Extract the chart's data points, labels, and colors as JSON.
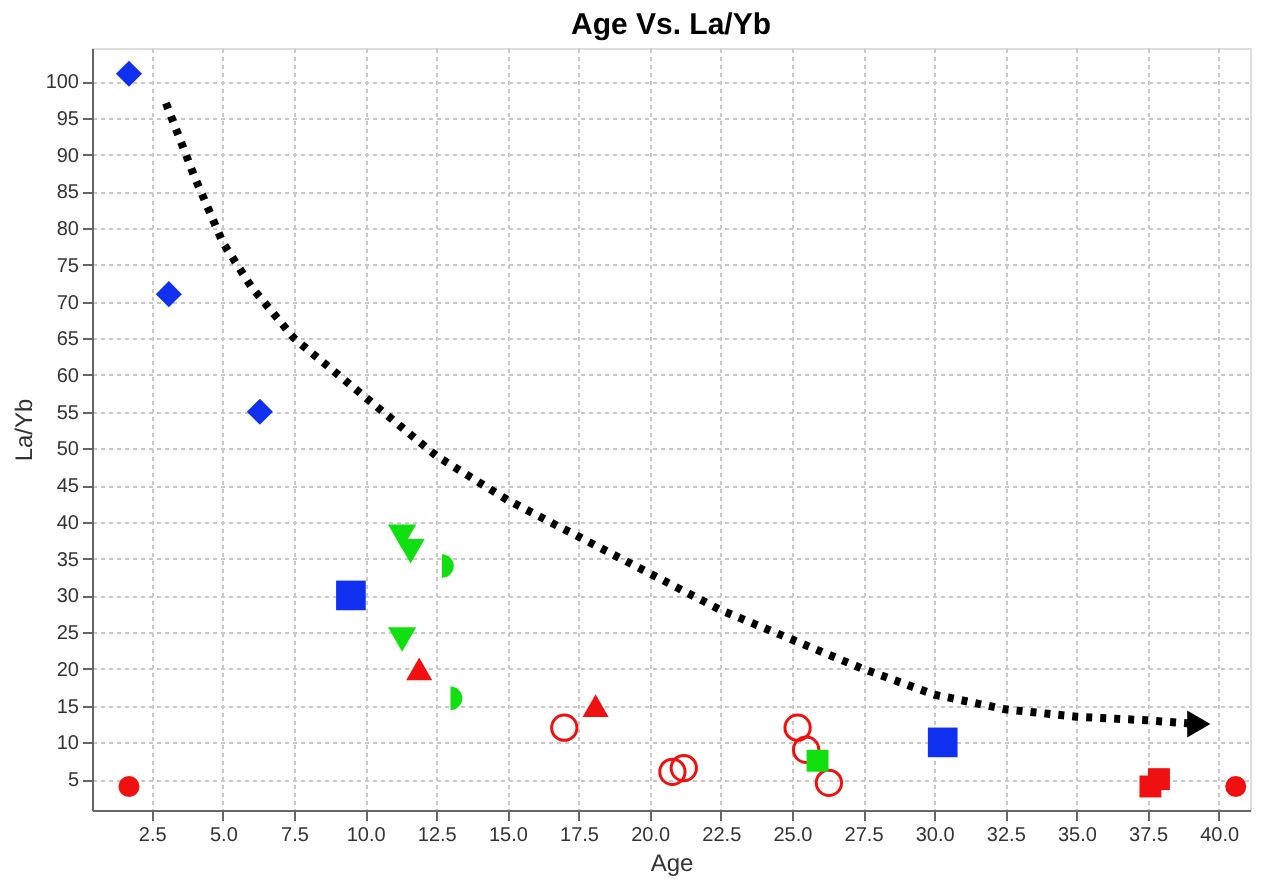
{
  "chart_data": {
    "type": "scatter",
    "title": "Age Vs.  La/Yb",
    "xlabel": "Age",
    "ylabel": "La/Yb",
    "xlim": [
      0.4,
      41.1
    ],
    "ylim": [
      0.8,
      104.5
    ],
    "xticks": [
      2.5,
      {
        "value": 5,
        "label": "5.0"
      },
      7.5,
      {
        "value": 10,
        "label": "10.0"
      },
      12.5,
      {
        "value": 15,
        "label": "15.0"
      },
      17.5,
      {
        "value": 20,
        "label": "20.0"
      },
      22.5,
      {
        "value": 25,
        "label": "25.0"
      },
      27.5,
      {
        "value": 30,
        "label": "30.0"
      },
      32.5,
      {
        "value": 35,
        "label": "35.0"
      },
      37.5,
      {
        "value": 40,
        "label": "40.0"
      }
    ],
    "yticks": [
      5,
      10,
      15,
      20,
      25,
      30,
      35,
      40,
      45,
      50,
      55,
      60,
      65,
      70,
      75,
      80,
      85,
      90,
      95,
      100
    ],
    "grid": true,
    "series": [
      {
        "color": "#1030f0",
        "marker": "diamond",
        "x": [
          1.7,
          3.1,
          6.3
        ],
        "values": [
          101,
          71,
          55
        ]
      },
      {
        "color": "#1030f0",
        "marker": "square",
        "x": [
          9.5,
          30.3
        ],
        "values": [
          30,
          10
        ]
      },
      {
        "color": "#10e010",
        "marker": "triangle-down",
        "x": [
          11.3,
          11.6,
          11.3
        ],
        "values": [
          38,
          36,
          24
        ]
      },
      {
        "color": "#10e010",
        "marker": "half-circle-right",
        "x": [
          12.7,
          13.0
        ],
        "values": [
          34,
          16
        ]
      },
      {
        "color": "#f01010",
        "marker": "triangle",
        "x": [
          11.9,
          18.1
        ],
        "values": [
          20,
          15
        ]
      },
      {
        "color": "#f01010",
        "marker": "circle-open",
        "x": [
          17.0,
          20.8,
          21.2,
          25.2,
          25.5,
          26.3
        ],
        "values": [
          12,
          6,
          6.5,
          12,
          9,
          4.5
        ]
      },
      {
        "color": "#10e010",
        "marker": "square",
        "x": [
          25.9
        ],
        "values": [
          7.5
        ]
      },
      {
        "color": "#f01010",
        "marker": "circle",
        "x": [
          1.7,
          40.6
        ],
        "values": [
          4,
          4
        ]
      },
      {
        "color": "#f01010",
        "marker": "square",
        "x": [
          37.6,
          37.9
        ],
        "values": [
          4,
          5
        ]
      },
      {
        "type": "line",
        "color": "#000000",
        "line_style": "dotted",
        "marker": "none",
        "x": [
          3.0,
          3.5,
          4.0,
          5.0,
          6.0,
          7.5,
          10.0,
          12.5,
          15.0,
          17.5,
          20.0,
          22.5,
          25.0,
          27.5,
          30.0,
          32.5,
          35.0,
          37.5,
          39.3
        ],
        "values": [
          97,
          92,
          87,
          78,
          72,
          65,
          57,
          49,
          43,
          38,
          33,
          28,
          24,
          20,
          16.5,
          14.5,
          13.5,
          13,
          12.5
        ]
      }
    ]
  }
}
